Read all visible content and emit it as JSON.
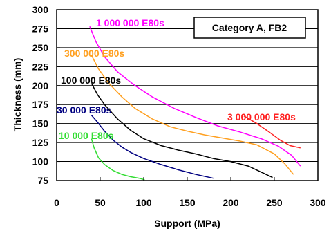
{
  "chart_data": {
    "type": "line",
    "title": "",
    "annotation_box": "Category A, FB2",
    "xlabel": "Support (MPa)",
    "ylabel": "Thickness (mm)",
    "xlim": [
      0,
      300
    ],
    "ylim": [
      75,
      300
    ],
    "xticks": [
      0,
      50,
      100,
      150,
      200,
      250,
      300
    ],
    "yticks": [
      75,
      100,
      125,
      150,
      175,
      200,
      225,
      250,
      275,
      300
    ],
    "grid": true,
    "series": [
      {
        "name": "10 000 E80s",
        "color": "#33dd33",
        "points": [
          [
            40,
            130
          ],
          [
            43,
            118
          ],
          [
            48,
            105
          ],
          [
            55,
            96
          ],
          [
            65,
            88
          ],
          [
            75,
            83
          ],
          [
            85,
            80
          ],
          [
            95,
            78
          ],
          [
            101,
            76
          ]
        ]
      },
      {
        "name": "30 000 E80s",
        "color": "#000080",
        "points": [
          [
            40,
            161
          ],
          [
            46,
            153
          ],
          [
            55,
            140
          ],
          [
            65,
            128
          ],
          [
            75,
            119
          ],
          [
            85,
            112
          ],
          [
            100,
            104
          ],
          [
            120,
            96
          ],
          [
            140,
            89
          ],
          [
            160,
            83
          ],
          [
            180,
            78
          ]
        ]
      },
      {
        "name": "100 000 E80s",
        "color": "#000000",
        "points": [
          [
            40,
            203
          ],
          [
            47,
            188
          ],
          [
            55,
            175
          ],
          [
            70,
            156
          ],
          [
            85,
            141
          ],
          [
            100,
            130
          ],
          [
            120,
            121
          ],
          [
            140,
            115
          ],
          [
            160,
            110
          ],
          [
            180,
            104
          ],
          [
            200,
            100
          ],
          [
            220,
            94
          ],
          [
            235,
            86
          ],
          [
            248,
            79
          ]
        ]
      },
      {
        "name": "300 000 E80s",
        "color": "#ffa020",
        "points": [
          [
            40,
            240
          ],
          [
            48,
            222
          ],
          [
            60,
            203
          ],
          [
            75,
            185
          ],
          [
            90,
            170
          ],
          [
            110,
            156
          ],
          [
            130,
            146
          ],
          [
            150,
            140
          ],
          [
            170,
            135
          ],
          [
            190,
            131
          ],
          [
            210,
            127
          ],
          [
            230,
            122
          ],
          [
            250,
            110
          ],
          [
            262,
            97
          ],
          [
            272,
            83
          ]
        ]
      },
      {
        "name": "1 000 000 E80s",
        "color": "#ff00ff",
        "points": [
          [
            38,
            278
          ],
          [
            45,
            258
          ],
          [
            55,
            238
          ],
          [
            70,
            218
          ],
          [
            90,
            200
          ],
          [
            110,
            185
          ],
          [
            135,
            170
          ],
          [
            160,
            158
          ],
          [
            185,
            147
          ],
          [
            210,
            139
          ],
          [
            235,
            130
          ],
          [
            255,
            120
          ],
          [
            270,
            108
          ],
          [
            280,
            94
          ]
        ]
      },
      {
        "name": "3 000 000 E80s",
        "color": "#ff2020",
        "points": [
          [
            215,
            160
          ],
          [
            230,
            150
          ],
          [
            245,
            138
          ],
          [
            257,
            128
          ],
          [
            268,
            121
          ],
          [
            280,
            118
          ]
        ]
      }
    ],
    "series_labels": [
      {
        "text": "1 000 000 E80s",
        "color": "#ff00ff"
      },
      {
        "text": "300 000 E80s",
        "color": "#ffa020"
      },
      {
        "text": "100 000 E80s",
        "color": "#000000"
      },
      {
        "text": "30 000 E80s",
        "color": "#000080"
      },
      {
        "text": "10 000 E80s",
        "color": "#33dd33"
      },
      {
        "text": "3 000 000 E80s",
        "color": "#ff2020"
      }
    ]
  }
}
